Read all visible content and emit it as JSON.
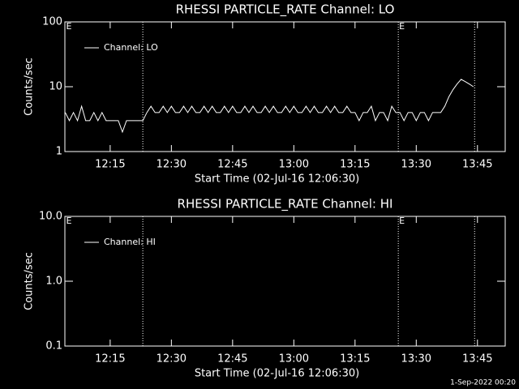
{
  "chart_data": [
    {
      "type": "line",
      "title": "RHESSI PARTICLE_RATE Channel: LO",
      "xlabel": "Start Time (02-Jul-16 12:06:30)",
      "ylabel": "Counts/sec",
      "log_y": true,
      "legend": "top-left",
      "x": [
        4,
        5,
        6,
        7,
        8,
        9,
        10,
        11,
        12,
        13,
        14,
        15,
        16,
        17,
        18,
        19,
        20,
        21,
        22,
        23,
        24,
        25,
        26,
        27,
        28,
        29,
        30,
        31,
        32,
        33,
        34,
        35,
        36,
        37,
        38,
        39,
        40,
        41,
        42,
        43,
        44,
        45,
        46,
        47,
        48,
        49,
        50,
        51,
        52,
        53,
        54,
        55,
        56,
        57,
        58,
        59,
        60,
        61,
        62,
        63,
        64,
        65,
        66,
        67,
        68,
        69,
        70,
        71,
        72,
        73,
        74,
        75,
        76,
        77,
        78,
        79,
        80,
        81,
        82,
        83,
        84,
        85,
        86,
        87,
        88,
        89,
        90,
        91,
        92,
        93,
        94,
        95,
        96,
        97,
        98,
        99,
        100,
        101,
        102,
        103,
        104
      ],
      "series": [
        {
          "name": "Channel: LO",
          "color": "#ffffff",
          "values": [
            4,
            3,
            4,
            3,
            5,
            3,
            3,
            4,
            3,
            4,
            3,
            3,
            3,
            3,
            2,
            3,
            3,
            3,
            3,
            3,
            4,
            5,
            4,
            4,
            5,
            4,
            5,
            4,
            4,
            5,
            4,
            5,
            4,
            4,
            5,
            4,
            5,
            4,
            4,
            5,
            4,
            5,
            4,
            4,
            5,
            4,
            5,
            4,
            4,
            5,
            4,
            5,
            4,
            4,
            5,
            4,
            5,
            4,
            4,
            5,
            4,
            5,
            4,
            4,
            5,
            4,
            5,
            4,
            4,
            5,
            4,
            4,
            3,
            4,
            4,
            5,
            3,
            4,
            4,
            3,
            5,
            4,
            4,
            3,
            4,
            4,
            3,
            4,
            4,
            3,
            4,
            4,
            4,
            5,
            7,
            9,
            11,
            13,
            12,
            11,
            10
          ]
        }
      ],
      "vlines": [
        23,
        85.6,
        104.3
      ],
      "flags": [
        {
          "x": 4,
          "label": "E"
        },
        {
          "x": 85.6,
          "label": "E"
        }
      ],
      "xlim": [
        3.9,
        111.8
      ],
      "ylim": [
        1,
        100
      ],
      "xticks": [
        {
          "value": 15,
          "label": "12:15"
        },
        {
          "value": 30,
          "label": "12:30"
        },
        {
          "value": 45,
          "label": "12:45"
        },
        {
          "value": 60,
          "label": "13:00"
        },
        {
          "value": 75,
          "label": "13:15"
        },
        {
          "value": 90,
          "label": "13:30"
        },
        {
          "value": 105,
          "label": "13:45"
        }
      ],
      "yticks": [
        1,
        10,
        100
      ]
    },
    {
      "type": "line",
      "title": "RHESSI PARTICLE_RATE Channel: HI",
      "xlabel": "Start Time (02-Jul-16 12:06:30)",
      "ylabel": "Counts/sec",
      "log_y": true,
      "legend": "top-left",
      "x": [],
      "series": [
        {
          "name": "Channel: HI",
          "color": "#ffffff",
          "values": []
        }
      ],
      "vlines": [
        23,
        85.6,
        104.3
      ],
      "flags": [
        {
          "x": 4,
          "label": "E"
        },
        {
          "x": 85.6,
          "label": "E"
        }
      ],
      "xlim": [
        3.9,
        111.8
      ],
      "ylim": [
        0.1,
        10
      ],
      "xticks": [
        {
          "value": 15,
          "label": "12:15"
        },
        {
          "value": 30,
          "label": "12:30"
        },
        {
          "value": 45,
          "label": "12:45"
        },
        {
          "value": 60,
          "label": "13:00"
        },
        {
          "value": 75,
          "label": "13:15"
        },
        {
          "value": 90,
          "label": "13:30"
        },
        {
          "value": 105,
          "label": "13:45"
        }
      ],
      "yticks": [
        0.1,
        {
          "value": 1,
          "label": "1.0"
        },
        {
          "value": 10,
          "label": "10.0"
        }
      ]
    }
  ],
  "footer": "1-Sep-2022 00:20"
}
